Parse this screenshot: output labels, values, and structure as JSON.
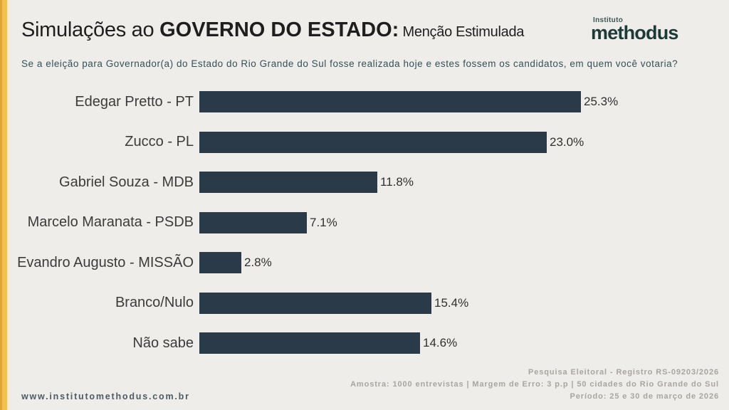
{
  "header": {
    "title_regular": "Simulações ao ",
    "title_bold": "GOVERNO DO ESTADO:",
    "title_suffix": " Menção Estimulada"
  },
  "logo": {
    "top": "Instituto",
    "name": "methodus",
    "color": "#1C3A37"
  },
  "subtitle": "Se a eleição para Governador(a) do Estado do Rio Grande do Sul fosse realizada hoje e estes fossem os candidatos, em quem você votaria?",
  "chart_data": {
    "type": "bar",
    "orientation": "horizontal",
    "categories": [
      "Edegar Pretto - PT",
      "Zucco - PL",
      "Gabriel Souza - MDB",
      "Marcelo Maranata - PSDB",
      "Evandro Augusto - MISSÃO",
      "Branco/Nulo",
      "Não sabe"
    ],
    "values": [
      25.3,
      23.0,
      11.8,
      7.1,
      2.8,
      15.4,
      14.6
    ],
    "value_labels": [
      "25.3%",
      "23.0%",
      "11.8%",
      "7.1%",
      "2.8%",
      "15.4%",
      "14.6%"
    ],
    "title": "Simulações ao GOVERNO DO ESTADO: Menção Estimulada",
    "xlabel": "",
    "ylabel": "",
    "xlim": [
      0,
      27
    ],
    "grid": false,
    "legend": "none",
    "bar_color": "#2B3A48",
    "background_color": "#EEEDEA",
    "accent_stripe_color": "#F2C14E"
  },
  "footer": {
    "lines": [
      "Pesquisa Eleitoral - Registro RS-09203/2026",
      "Amostra: 1000 entrevistas | Margem de Erro: 3 p.p | 50 cidades do Rio Grande do Sul",
      "Período: 25 e 30 de março de 2026"
    ],
    "website": "www.institutomethodus.com.br"
  }
}
